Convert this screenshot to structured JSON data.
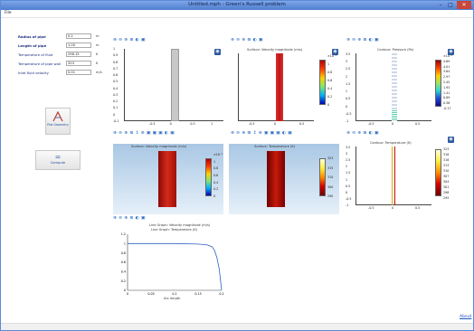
{
  "window": {
    "title": "Untitled.mph - Green's Russell problem"
  },
  "menu": {
    "file": "File"
  },
  "controls": {
    "minimize": "–",
    "maximize": "□",
    "close": "✕"
  },
  "inputs": [
    {
      "label": "Radius of pipe",
      "value": "0.2",
      "unit": "m"
    },
    {
      "label": "Length of pipe",
      "value": "1.00",
      "unit": "m"
    },
    {
      "label": "Temperature of fluid",
      "value": "298.15",
      "unit": "K"
    },
    {
      "label": "Temperature of pipe wall",
      "value": "323",
      "unit": "K"
    },
    {
      "label": "Inlet fluid velocity",
      "value": "0.01",
      "unit": "m/s"
    }
  ],
  "buttons": {
    "plot_geometry": "Plot Geometry",
    "compute": "Compute"
  },
  "toolbar_icons": "⊕ ⊖ ⊕ ⊞  ◐ ▣",
  "toolbar_icons_wide": "⊕ ⊖ ⊕ ⊞ ↕ ⊕ ▣ ▣ ▣ ◐ ▣",
  "panels": {
    "geometry": {
      "title": ""
    },
    "velocity": {
      "title": "Surface: Velocity magnitude (m/s)"
    },
    "pressure": {
      "title": "Contour: Pressure (Pa)"
    },
    "surface_velocity": {
      "title": "Surface: Velocity magnitude (m/s)"
    },
    "surface_temperature": {
      "title": "Surface: Temperature (K)"
    },
    "contour_temperature": {
      "title": "Contour: Temperature (K)"
    },
    "line_graph": {
      "title": "Line Graph: Velocity magnitude (m/s)",
      "subtitle": "Line Graph: Temperature (K)",
      "xlabel": "Arc length"
    }
  },
  "ticks": {
    "geom_y": [
      "1",
      "0.9",
      "0.8",
      "0.7",
      "0.6",
      "0.5",
      "0.4",
      "0.3",
      "0.2",
      "0.1",
      "0",
      "-0.1"
    ],
    "geom_x": [
      "-0.5",
      "0",
      "0.5",
      "1"
    ],
    "vel_x": [
      "-0.5",
      "0",
      "0.5"
    ],
    "vel_cbar": [
      "×10⁻³",
      "1",
      "0.8",
      "0.6",
      "0.4",
      "0.2",
      "0"
    ],
    "pressure_y": [
      "3.5",
      "3",
      "2.5",
      "2",
      "1.5",
      "1",
      "0.5",
      "0",
      "-0.5",
      "-1"
    ],
    "pressure_x": [
      "-0.5",
      "0",
      "0.5"
    ],
    "pressure_cbar": [
      "×10⁻³",
      "4.69",
      "4.01",
      "3.64",
      "2.97",
      "2.45",
      "1.93",
      "1.41",
      "0.89",
      "0.36",
      "-0.17"
    ],
    "sv_cbar": [
      "×10⁻³",
      "1",
      "0.8",
      "0.6",
      "0.4",
      "0.2",
      "0"
    ],
    "st_cbar": [
      "323",
      "315",
      "310",
      "300",
      "290"
    ],
    "ct_y": [
      "3.5",
      "3",
      "2.5",
      "2",
      "1.5",
      "1",
      "0.5",
      "0",
      "-0.5",
      "-1"
    ],
    "ct_x": [
      "-0.5",
      "0",
      "0.5"
    ],
    "ct_cbar": [
      "323",
      "318",
      "316",
      "313",
      "310",
      "307",
      "304",
      "301",
      "298",
      "295"
    ],
    "line_y": [
      "1.2",
      "1",
      "0.8",
      "0.6",
      "0.4",
      "0.2",
      "0"
    ],
    "line_x": [
      "0",
      "0.05",
      "0.1",
      "0.15",
      "0.2"
    ]
  },
  "about": "About",
  "chart_data": {
    "type": "line",
    "title": "Line Graph: Velocity magnitude (m/s)",
    "xlabel": "Arc length",
    "ylabel": "",
    "xlim": [
      0,
      0.2
    ],
    "ylim": [
      0,
      1.2
    ],
    "series": [
      {
        "values": [
          1.0,
          1.0,
          1.0,
          0.99,
          0.97,
          0.93,
          0.85,
          0.7,
          0.45,
          0.18,
          0.0
        ],
        "x": [
          0,
          0.05,
          0.1,
          0.15,
          0.17,
          0.18,
          0.185,
          0.19,
          0.195,
          0.198,
          0.2
        ]
      }
    ]
  }
}
